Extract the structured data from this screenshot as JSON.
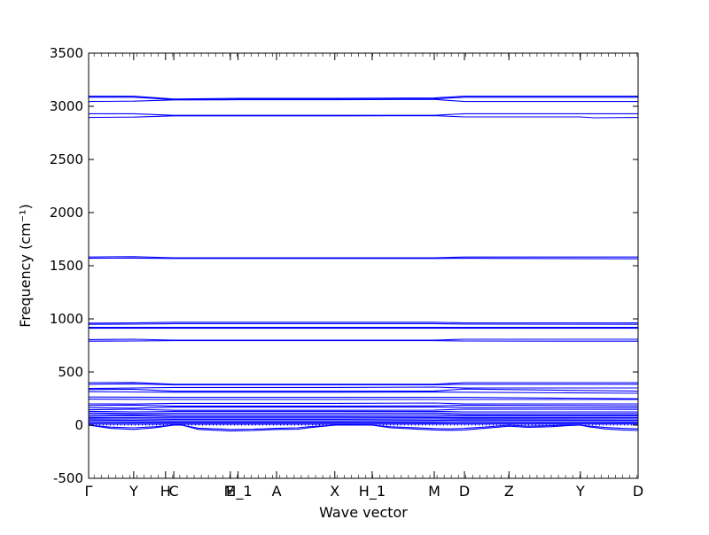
{
  "chart_data": {
    "type": "line",
    "title": "",
    "xlabel": "Wave vector",
    "ylabel": "Frequency (cm⁻¹)",
    "ylim": [
      -500,
      3500
    ],
    "yticks": [
      -500,
      0,
      500,
      1000,
      1500,
      2000,
      2500,
      3000,
      3500
    ],
    "xlim": [
      0,
      100
    ],
    "kpoints": [
      {
        "label": "Γ",
        "x": 0
      },
      {
        "label": "Y",
        "x": 8.2
      },
      {
        "label": "H",
        "x": 14
      },
      {
        "label": "C",
        "x": 15.5
      },
      {
        "label": "E",
        "x": 25.8
      },
      {
        "label": "M_1",
        "x": 27.2
      },
      {
        "label": "A",
        "x": 34.2
      },
      {
        "label": "X",
        "x": 44.8
      },
      {
        "label": "H_1",
        "x": 51.6
      },
      {
        "label": "M",
        "x": 62.9
      },
      {
        "label": "D",
        "x": 68.4
      },
      {
        "label": "Z",
        "x": 76.5
      },
      {
        "label": "Y",
        "x": 89.5
      },
      {
        "label": "D",
        "x": 100
      }
    ],
    "series_color": "#0000ff",
    "grid": false,
    "branches": [
      {
        "name": "",
        "x": [
          0,
          8.2,
          15.5,
          27.2,
          44.8,
          62.9,
          68.4,
          100
        ],
        "y": [
          3095,
          3095,
          3068,
          3075,
          3075,
          3078,
          3095,
          3095
        ]
      },
      {
        "name": "",
        "x": [
          0,
          8.2,
          15.5,
          27.2,
          44.8,
          62.9,
          68.4,
          100
        ],
        "y": [
          3085,
          3085,
          3063,
          3066,
          3066,
          3070,
          3085,
          3085
        ]
      },
      {
        "name": "",
        "x": [
          0,
          8.2,
          15.5,
          27.2,
          44.8,
          62.9,
          68.4,
          100
        ],
        "y": [
          3045,
          3048,
          3060,
          3062,
          3062,
          3065,
          3045,
          3045
        ]
      },
      {
        "name": "",
        "x": [
          0,
          8.2,
          15.5,
          44.8,
          62.9,
          68.4,
          100
        ],
        "y": [
          2930,
          2930,
          2915,
          2915,
          2915,
          2930,
          2930
        ]
      },
      {
        "name": "",
        "x": [
          0,
          8.2,
          15.5,
          44.8,
          62.9,
          68.4,
          89.5,
          92,
          100
        ],
        "y": [
          2895,
          2898,
          2910,
          2910,
          2912,
          2900,
          2900,
          2892,
          2895
        ]
      },
      {
        "name": "",
        "x": [
          0,
          8.2,
          15.5,
          44.8,
          62.9,
          68.4,
          100
        ],
        "y": [
          1582,
          1585,
          1575,
          1575,
          1575,
          1582,
          1582
        ]
      },
      {
        "name": "",
        "x": [
          0,
          8.2,
          15.5,
          44.8,
          62.9,
          68.4,
          100
        ],
        "y": [
          1570,
          1572,
          1568,
          1568,
          1568,
          1570,
          1565
        ]
      },
      {
        "name": "",
        "x": [
          0,
          8.2,
          15.5,
          44.8,
          62.9,
          68.4,
          100
        ],
        "y": [
          960,
          962,
          968,
          968,
          968,
          962,
          962
        ]
      },
      {
        "name": "",
        "x": [
          0,
          8.2,
          15.5,
          44.8,
          62.9,
          68.4,
          100
        ],
        "y": [
          948,
          950,
          955,
          955,
          955,
          950,
          948
        ]
      },
      {
        "name": "",
        "x": [
          0,
          100
        ],
        "y": [
          920,
          920
        ]
      },
      {
        "name": "",
        "x": [
          0,
          100
        ],
        "y": [
          912,
          912
        ]
      },
      {
        "name": "",
        "x": [
          0,
          8.2,
          15.5,
          44.8,
          62.9,
          68.4,
          100
        ],
        "y": [
          805,
          808,
          800,
          800,
          800,
          808,
          808
        ]
      },
      {
        "name": "",
        "x": [
          0,
          8.2,
          15.5,
          44.8,
          62.9,
          68.4,
          89.5,
          100
        ],
        "y": [
          790,
          792,
          795,
          795,
          795,
          792,
          790,
          790
        ]
      },
      {
        "name": "",
        "x": [
          0,
          8.2,
          15.5,
          44.8,
          62.9,
          68.4,
          100
        ],
        "y": [
          400,
          402,
          385,
          385,
          385,
          400,
          400
        ]
      },
      {
        "name": "",
        "x": [
          0,
          8.2,
          15.5,
          44.8,
          62.9,
          68.4,
          100
        ],
        "y": [
          385,
          388,
          380,
          380,
          380,
          385,
          385
        ]
      },
      {
        "name": "",
        "x": [
          0,
          8.2,
          15.5,
          44.8,
          62.9,
          68.4,
          100
        ],
        "y": [
          345,
          350,
          355,
          355,
          358,
          350,
          350
        ]
      },
      {
        "name": "",
        "x": [
          0,
          8.2,
          15.5,
          44.8,
          62.9,
          68.4,
          100
        ],
        "y": [
          335,
          338,
          320,
          320,
          322,
          340,
          320
        ]
      },
      {
        "name": "",
        "x": [
          0,
          15.5,
          44.8,
          62.9,
          100
        ],
        "y": [
          315,
          310,
          310,
          312,
          300
        ]
      },
      {
        "name": "",
        "x": [
          0,
          15.5,
          44.8,
          62.9,
          68.4,
          100
        ],
        "y": [
          265,
          262,
          262,
          262,
          262,
          248
        ]
      },
      {
        "name": "",
        "x": [
          0,
          15.5,
          44.8,
          62.9,
          100
        ],
        "y": [
          245,
          242,
          242,
          242,
          242
        ]
      },
      {
        "name": "",
        "x": [
          0,
          8.2,
          15.5,
          44.8,
          62.9,
          68.4,
          100
        ],
        "y": [
          200,
          198,
          205,
          205,
          208,
          200,
          200
        ]
      },
      {
        "name": "",
        "x": [
          0,
          8.2,
          15.5,
          44.8,
          62.9,
          68.4,
          100
        ],
        "y": [
          185,
          188,
          180,
          180,
          182,
          188,
          182
        ]
      },
      {
        "name": "",
        "x": [
          0,
          8.2,
          15.5,
          44.8,
          62.9,
          68.4,
          100
        ],
        "y": [
          165,
          160,
          170,
          170,
          172,
          165,
          165
        ]
      },
      {
        "name": "",
        "x": [
          0,
          8.2,
          15.5,
          44.8,
          62.9,
          68.4,
          100
        ],
        "y": [
          145,
          150,
          140,
          140,
          142,
          150,
          148
        ]
      },
      {
        "name": "",
        "x": [
          0,
          8.2,
          15.5,
          44.8,
          62.9,
          68.4,
          100
        ],
        "y": [
          130,
          125,
          128,
          128,
          130,
          125,
          125
        ]
      },
      {
        "name": "",
        "x": [
          0,
          8.2,
          15.5,
          44.8,
          62.9,
          68.4,
          100
        ],
        "y": [
          115,
          110,
          112,
          112,
          115,
          108,
          110
        ]
      },
      {
        "name": "",
        "x": [
          0,
          8.2,
          15.5,
          44.8,
          62.9,
          68.4,
          100
        ],
        "y": [
          100,
          98,
          95,
          95,
          98,
          95,
          95
        ]
      },
      {
        "name": "",
        "x": [
          0,
          8.2,
          15.5,
          44.8,
          62.9,
          68.4,
          100
        ],
        "y": [
          85,
          88,
          80,
          80,
          82,
          85,
          85
        ]
      },
      {
        "name": "",
        "x": [
          0,
          8.2,
          15.5,
          44.8,
          62.9,
          68.4,
          100
        ],
        "y": [
          72,
          70,
          68,
          68,
          70,
          70,
          70
        ]
      },
      {
        "name": "",
        "x": [
          0,
          8.2,
          15.5,
          44.8,
          62.9,
          68.4,
          100
        ],
        "y": [
          60,
          58,
          55,
          55,
          58,
          60,
          58
        ]
      },
      {
        "name": "",
        "x": [
          0,
          8.2,
          15.5,
          44.8,
          62.9,
          68.4,
          100
        ],
        "y": [
          48,
          45,
          42,
          42,
          45,
          48,
          45
        ]
      },
      {
        "name": "",
        "x": [
          0,
          8.2,
          15.5,
          44.8,
          62.9,
          68.4,
          100
        ],
        "y": [
          35,
          32,
          30,
          30,
          32,
          35,
          32
        ]
      },
      {
        "name": "",
        "x": [
          0,
          8.2,
          15.5,
          44.8,
          62.9,
          68.4,
          100
        ],
        "y": [
          22,
          20,
          18,
          18,
          20,
          22,
          20
        ]
      },
      {
        "name": "",
        "x": [
          0,
          8.2,
          15.5,
          44.8,
          62.9,
          68.4,
          100
        ],
        "y": [
          10,
          8,
          8,
          8,
          10,
          10,
          10
        ]
      },
      {
        "name": "",
        "x": [
          0,
          4,
          8.2,
          12,
          15.5,
          17,
          20,
          25.8,
          30,
          34.2,
          38,
          40,
          44.8,
          47,
          51.6,
          55,
          62.9,
          66,
          68.4,
          72,
          76.5,
          80,
          84,
          87,
          89.5,
          91,
          94,
          97,
          100
        ],
        "y": [
          0,
          -30,
          -40,
          -25,
          0,
          0,
          -40,
          -55,
          -50,
          -40,
          -38,
          -25,
          0,
          0,
          0,
          -25,
          -45,
          -48,
          -45,
          -30,
          -10,
          -20,
          -15,
          -5,
          0,
          -15,
          -35,
          -45,
          -50
        ]
      },
      {
        "name": "",
        "x": [
          0,
          4,
          8.2,
          12,
          15.5,
          17,
          20,
          25.8,
          30,
          34.2,
          38,
          40,
          44.8,
          47,
          51.6,
          55,
          62.9,
          66,
          68.4,
          72,
          76.5,
          80,
          84,
          87,
          89.5,
          91,
          94,
          97,
          100
        ],
        "y": [
          0,
          -18,
          -25,
          -15,
          0,
          0,
          -28,
          -40,
          -38,
          -30,
          -25,
          -15,
          0,
          0,
          0,
          -15,
          -32,
          -35,
          -30,
          -18,
          0,
          -10,
          -5,
          0,
          0,
          -8,
          -22,
          -30,
          -35
        ]
      },
      {
        "name": "",
        "x": [
          0,
          100
        ],
        "y": [
          0,
          0
        ]
      }
    ]
  }
}
